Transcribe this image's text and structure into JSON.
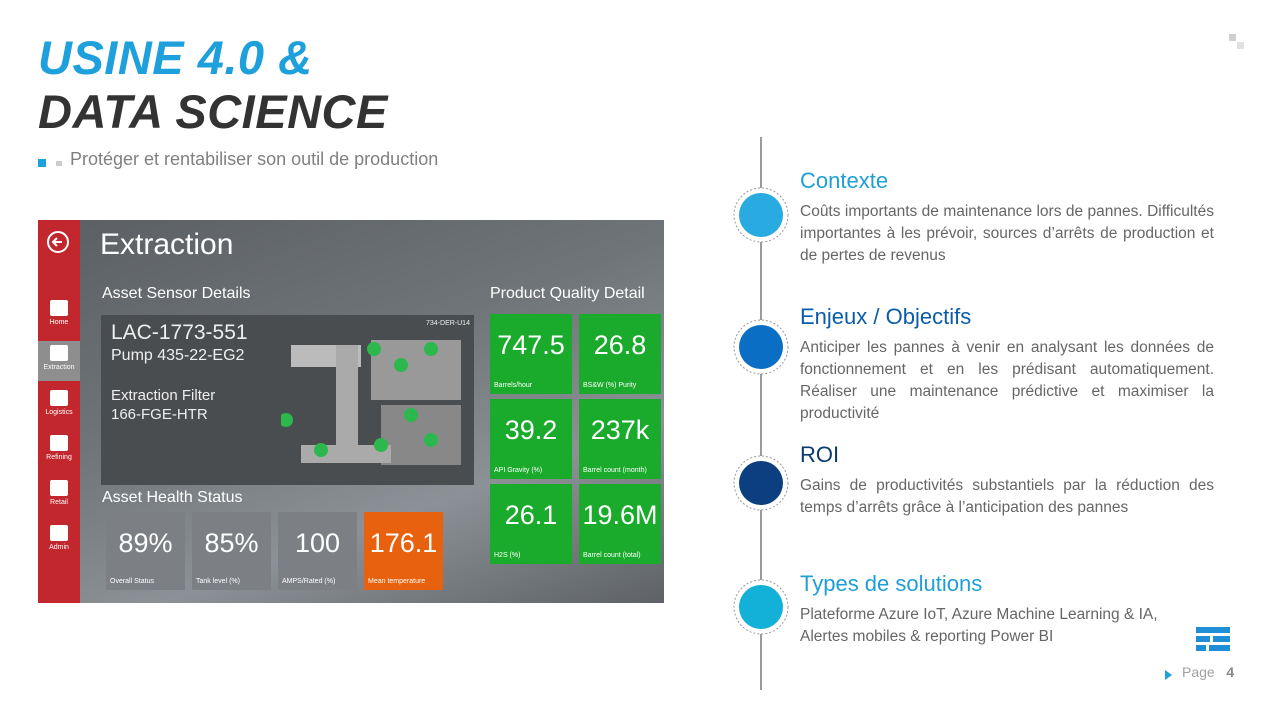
{
  "header": {
    "title_line1": "USINE 4.0 &",
    "title_line2": "DATA SCIENCE",
    "subtitle": "Protéger et rentabiliser son outil de production"
  },
  "dashboard": {
    "title": "Extraction",
    "nav": [
      "Home",
      "Extraction",
      "Logistics",
      "Refining",
      "Retail",
      "Admin"
    ],
    "sensor_heading": "Asset Sensor Details",
    "asset_id": "LAC-1773-551",
    "pump": "Pump 435-22-EG2",
    "filter_label": "Extraction Filter",
    "filter_id": "166-FGE-HTR",
    "diagram_tag": "734-DER-U14",
    "health_heading": "Asset Health Status",
    "health_tiles": [
      {
        "value": "89%",
        "label": "Overall Status"
      },
      {
        "value": "85%",
        "label": "Tank level (%)"
      },
      {
        "value": "100",
        "label": "AMPS/Rated (%)"
      },
      {
        "value": "176.1",
        "label": "Mean temperature"
      }
    ],
    "quality_heading": "Product Quality Detail",
    "quality_tiles": [
      {
        "value": "747.5",
        "label": "Barrels/hour"
      },
      {
        "value": "26.8",
        "label": "BS&W (%) Purity"
      },
      {
        "value": "39.2",
        "label": "API Gravity (%)"
      },
      {
        "value": "237k",
        "label": "Barrel count (month)"
      },
      {
        "value": "26.1",
        "label": "H2S (%)"
      },
      {
        "value": "19.6M",
        "label": "Barrel count (total)"
      }
    ]
  },
  "timeline": [
    {
      "heading": "Contexte",
      "text": "Coûts importants de maintenance lors de pannes. Difficultés importantes à les prévoir, sources d’arrêts de production et de pertes de revenus"
    },
    {
      "heading": "Enjeux / Objectifs",
      "text": "Anticiper les pannes à venir en analysant les données de fonctionnement et en les prédisant automatiquement. Réaliser une maintenance prédictive et maximiser la productivité"
    },
    {
      "heading": "ROI",
      "text": "Gains de productivités substantiels par la réduction des temps d’arrêts grâce à l’anticipation des pannes"
    },
    {
      "heading": "Types de solutions",
      "text": "Plateforme Azure IoT, Azure Machine Learning & IA, Alertes mobiles & reporting Power BI"
    }
  ],
  "footer": {
    "page_label": "Page",
    "page_number": "4"
  }
}
